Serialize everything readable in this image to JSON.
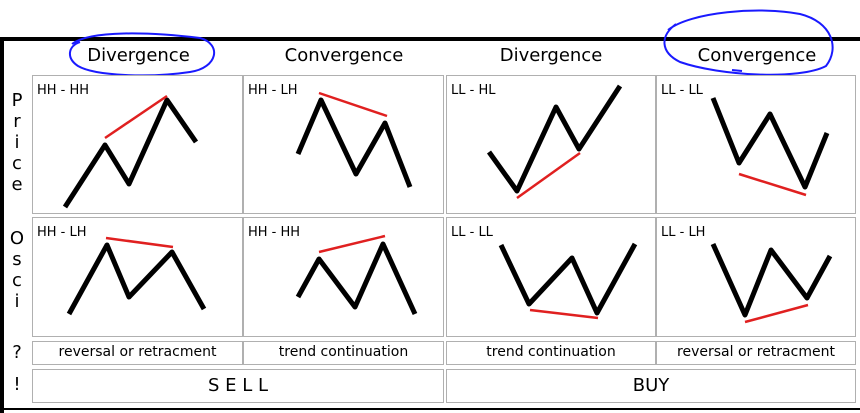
{
  "headers": [
    "Divergence",
    "Convergence",
    "Divergence",
    "Convergence"
  ],
  "side_labels": {
    "price": [
      "P",
      "r",
      "i",
      "c",
      "e"
    ],
    "osci": [
      "O",
      "s",
      "c",
      "i"
    ],
    "question": "?",
    "exclaim": "!"
  },
  "price_row": [
    {
      "label": "HH - HH"
    },
    {
      "label": "HH - LH"
    },
    {
      "label": "LL - HL"
    },
    {
      "label": "LL - LL"
    }
  ],
  "osci_row": [
    {
      "label": "HH - LH"
    },
    {
      "label": "HH - HH"
    },
    {
      "label": "LL - LL"
    },
    {
      "label": "LL - LH"
    }
  ],
  "notes": [
    "reversal or retracment",
    "trend continuation",
    "trend continuation",
    "reversal or retracment"
  ],
  "actions": [
    "S E L L",
    "BUY"
  ],
  "colors": {
    "line": "#000000",
    "trend": "#e02020",
    "annotation": "#1a1aff"
  }
}
